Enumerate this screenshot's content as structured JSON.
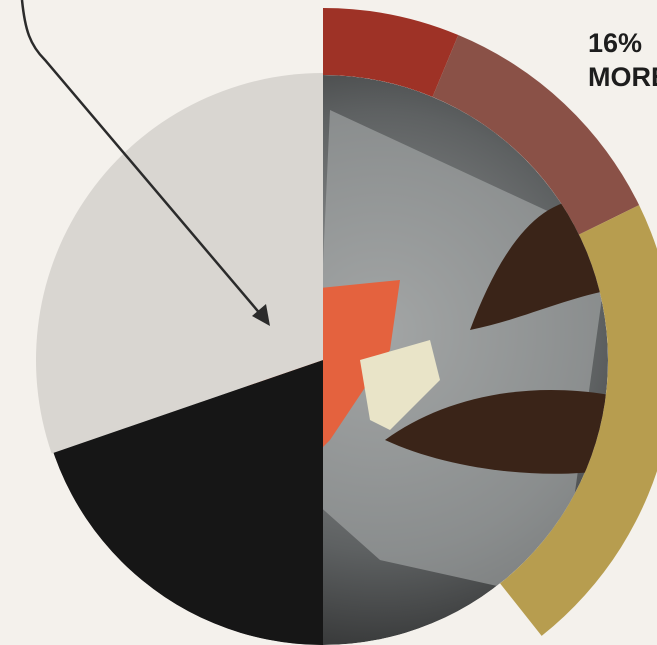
{
  "annotation": {
    "value": "16%",
    "text": "MORE"
  }
}
